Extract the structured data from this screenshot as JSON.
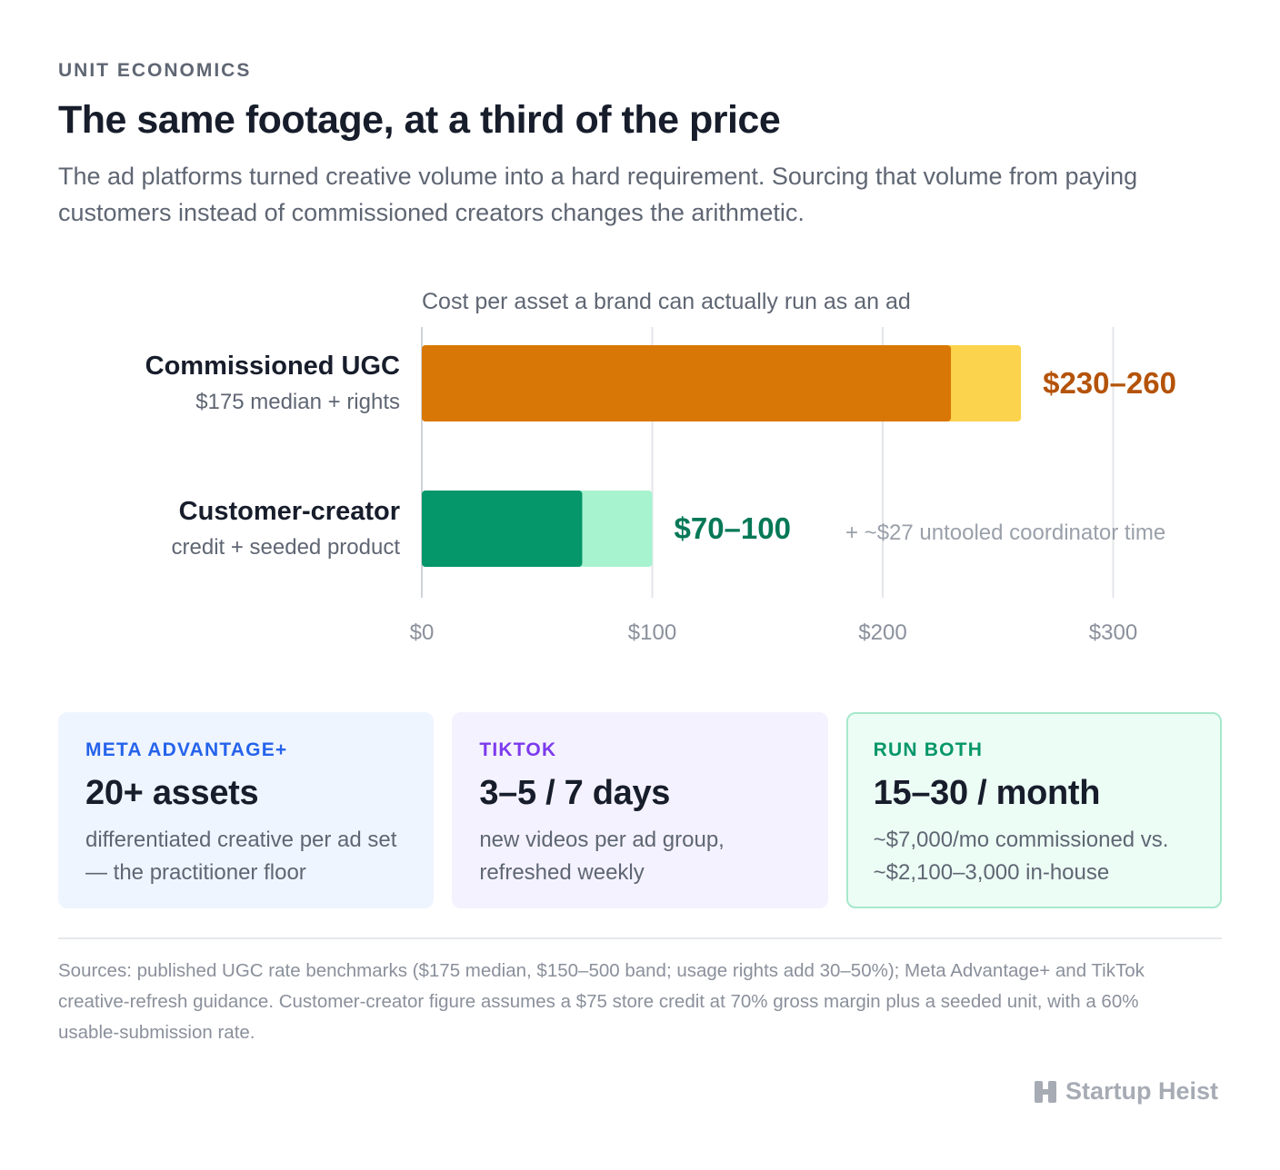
{
  "header": {
    "eyebrow": "UNIT ECONOMICS",
    "title": "The same footage, at a third of the price",
    "subtitle": "The ad platforms turned creative volume into a hard requirement. Sourcing that volume from paying customers instead of commissioned creators changes the arithmetic."
  },
  "chart_data": {
    "type": "bar",
    "orientation": "horizontal",
    "stacked": true,
    "title": "Cost per asset a brand can actually run as an ad",
    "categories": [
      {
        "name": "Commissioned UGC",
        "sublabel": "$175 median + rights",
        "low": 230,
        "high": 260,
        "value_label": "$230–260",
        "note": ""
      },
      {
        "name": "Customer-creator",
        "sublabel": "credit + seeded product",
        "low": 70,
        "high": 100,
        "value_label": "$70–100",
        "note": "+ ~$27 untooled coordinator time"
      }
    ],
    "xlim": [
      0,
      340
    ],
    "xticks": [
      0,
      100,
      200,
      300
    ],
    "xtick_labels": [
      "$0",
      "$100",
      "$200",
      "$300"
    ],
    "grid": true,
    "colors": {
      "commissioned_base": "#d97706",
      "commissioned_range": "#fcd34d",
      "commissioned_label": "#b45309",
      "customer_base": "#059669",
      "customer_range": "#a7f3d0",
      "customer_label": "#047857",
      "grid": "#e3e5e9",
      "tick": "#8a909b"
    }
  },
  "cards": [
    {
      "eyebrow": "META ADVANTAGE+",
      "value": "20+ assets",
      "desc": "differentiated creative per ad set — the practitioner floor",
      "accent": "#2563eb",
      "bg": "#eff5ff",
      "border": "#eff5ff"
    },
    {
      "eyebrow": "TIKTOK",
      "value": "3–5 / 7 days",
      "desc": "new videos per ad group, refreshed weekly",
      "accent": "#7c3aed",
      "bg": "#f4f2ff",
      "border": "#f4f2ff"
    },
    {
      "eyebrow": "RUN BOTH",
      "value": "15–30 / month",
      "desc": "~$7,000/mo commissioned vs. ~$2,100–3,000 in-house",
      "accent": "#059669",
      "bg": "#ecfdf5",
      "border": "#a7e8cc"
    }
  ],
  "footer": {
    "sources": "Sources: published UGC rate benchmarks ($175 median, $150–500 band; usage rights add 30–50%); Meta Advantage+ and TikTok creative-refresh guidance. Customer-creator figure assumes a $75 store credit at 70% gross margin plus a seeded unit, with a 60% usable-submission rate.",
    "brand": "Startup Heist"
  }
}
